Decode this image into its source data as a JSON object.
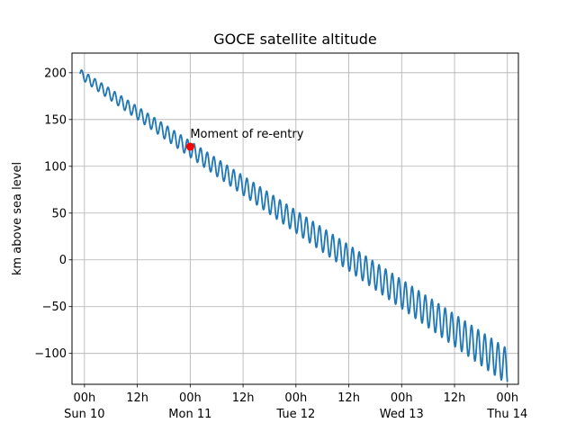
{
  "chart_data": {
    "type": "line",
    "title": "GOCE satellite altitude",
    "xlabel": "",
    "ylabel": "km above sea level",
    "grid": true,
    "xlim": [
      "2013-11-09T21:10",
      "2013-11-14T02:30"
    ],
    "ylim": [
      -133,
      221
    ],
    "yticks": [
      200,
      150,
      100,
      50,
      0,
      -50,
      -100
    ],
    "ytick_labels": [
      "200",
      "150",
      "100",
      "50",
      "0",
      "−50",
      "−100"
    ],
    "xticks": [
      {
        "x": "2013-11-10T00:00",
        "line1": "00h",
        "line2": "Sun 10"
      },
      {
        "x": "2013-11-10T12:00",
        "line1": "12h",
        "line2": ""
      },
      {
        "x": "2013-11-11T00:00",
        "line1": "00h",
        "line2": "Mon 11"
      },
      {
        "x": "2013-11-11T12:00",
        "line1": "12h",
        "line2": ""
      },
      {
        "x": "2013-11-12T00:00",
        "line1": "00h",
        "line2": "Tue 12"
      },
      {
        "x": "2013-11-12T12:00",
        "line1": "12h",
        "line2": ""
      },
      {
        "x": "2013-11-13T00:00",
        "line1": "00h",
        "line2": "Wed 13"
      },
      {
        "x": "2013-11-13T12:00",
        "line1": "12h",
        "line2": ""
      },
      {
        "x": "2013-11-14T00:00",
        "line1": "00h",
        "line2": "Thu 14"
      }
    ],
    "series": [
      {
        "color": "#1f77b4",
        "x_start": "2013-11-09T23:00",
        "x_end": "2013-11-14T00:00",
        "y_start": 199,
        "y_end": -114,
        "oscillation_period_hours": 1.5,
        "oscillation_amplitude_start": 5,
        "oscillation_amplitude_end": 19
      }
    ],
    "annotations": [
      {
        "text": "Moment of re-entry",
        "x": "2013-11-11T00:00",
        "y": 121,
        "marker_color": "#ff0000"
      }
    ]
  }
}
